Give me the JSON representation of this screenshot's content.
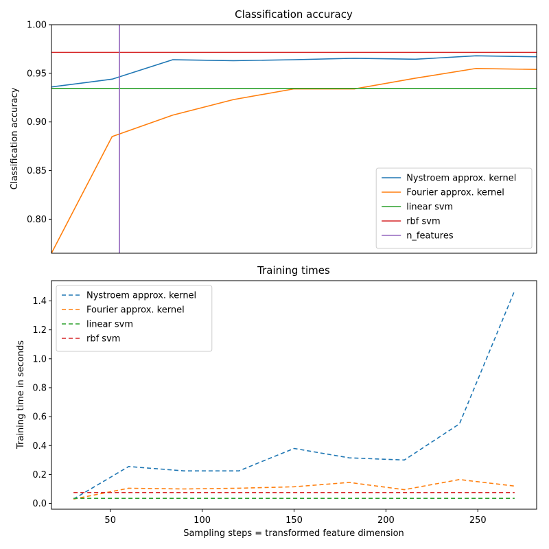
{
  "chart_data": [
    {
      "type": "line",
      "title": "Classification accuracy",
      "xlabel": "",
      "ylabel": "Classification accuracy",
      "xlim": [
        18,
        282
      ],
      "ylim": [
        0.765,
        1.0
      ],
      "xticks_visible": false,
      "yticks": [
        0.8,
        0.85,
        0.9,
        0.95,
        1.0
      ],
      "ytick_labels": [
        "0.80",
        "0.85",
        "0.90",
        "0.95",
        "1.00"
      ],
      "grid": false,
      "legend_position": "lower-right",
      "series": [
        {
          "name": "Nystroem approx. kernel",
          "color": "#1f77b4",
          "dash": "solid",
          "kind": "line",
          "x": [
            18,
            51,
            84,
            117,
            150,
            183,
            216,
            249,
            282
          ],
          "y": [
            0.936,
            0.944,
            0.964,
            0.963,
            0.964,
            0.9655,
            0.9645,
            0.968,
            0.967
          ]
        },
        {
          "name": "Fourier approx. kernel",
          "color": "#ff7f0e",
          "dash": "solid",
          "kind": "line",
          "x": [
            18,
            51,
            84,
            117,
            150,
            183,
            216,
            249,
            282
          ],
          "y": [
            0.765,
            0.885,
            0.907,
            0.923,
            0.934,
            0.934,
            0.945,
            0.955,
            0.954
          ]
        },
        {
          "name": "linear svm",
          "color": "#2ca02c",
          "dash": "solid",
          "kind": "hline",
          "y": 0.9345
        },
        {
          "name": "rbf svm",
          "color": "#d62728",
          "dash": "solid",
          "kind": "hline",
          "y": 0.9715
        },
        {
          "name": "n_features",
          "color": "#9467bd",
          "dash": "solid",
          "kind": "vline",
          "x": 55
        }
      ]
    },
    {
      "type": "line",
      "title": "Training times",
      "xlabel": "Sampling steps = transformed feature dimension",
      "ylabel": "Training time in seconds",
      "xlim": [
        18,
        282
      ],
      "ylim": [
        -0.04,
        1.54
      ],
      "xticks": [
        50,
        100,
        150,
        200,
        250
      ],
      "xtick_labels": [
        "50",
        "100",
        "150",
        "200",
        "250"
      ],
      "yticks": [
        0.0,
        0.2,
        0.4,
        0.6,
        0.8,
        1.0,
        1.2,
        1.4
      ],
      "ytick_labels": [
        "0.0",
        "0.2",
        "0.4",
        "0.6",
        "0.8",
        "1.0",
        "1.2",
        "1.4"
      ],
      "grid": false,
      "legend_position": "upper-left",
      "series": [
        {
          "name": "Nystroem approx. kernel",
          "color": "#1f77b4",
          "dash": "dashed",
          "kind": "line",
          "x": [
            30,
            60,
            90,
            120,
            150,
            180,
            210,
            240,
            270
          ],
          "y": [
            0.03,
            0.255,
            0.225,
            0.225,
            0.38,
            0.315,
            0.3,
            0.55,
            1.47
          ]
        },
        {
          "name": "Fourier approx. kernel",
          "color": "#ff7f0e",
          "dash": "dashed",
          "kind": "line",
          "x": [
            30,
            60,
            90,
            120,
            150,
            180,
            210,
            240,
            270
          ],
          "y": [
            0.03,
            0.105,
            0.1,
            0.105,
            0.115,
            0.145,
            0.095,
            0.165,
            0.12
          ]
        },
        {
          "name": "linear svm",
          "color": "#2ca02c",
          "dash": "dashed",
          "kind": "line",
          "x": [
            30,
            270
          ],
          "y": [
            0.035,
            0.035
          ]
        },
        {
          "name": "rbf svm",
          "color": "#d62728",
          "dash": "dashed",
          "kind": "line",
          "x": [
            30,
            270
          ],
          "y": [
            0.075,
            0.075
          ]
        }
      ]
    }
  ]
}
